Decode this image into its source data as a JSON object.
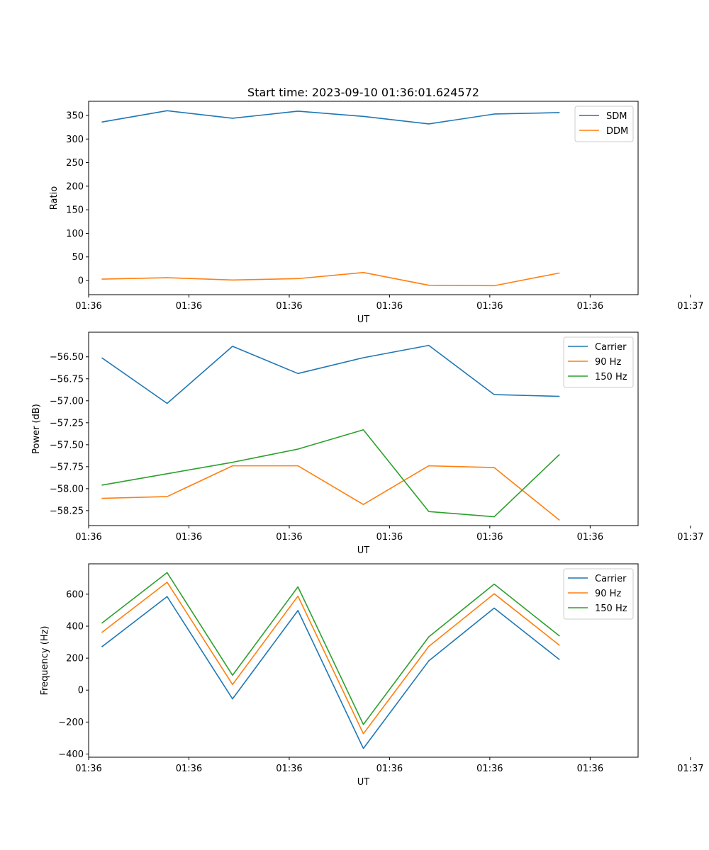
{
  "chart_data": [
    {
      "type": "line",
      "title": "Start time: 2023-09-10 01:36:01.624572",
      "xlabel": "UT",
      "ylabel": "Ratio",
      "x": [
        1,
        2,
        3,
        4,
        5,
        6,
        7,
        8
      ],
      "xlim": [
        0.8,
        9.2
      ],
      "xtick_values": [
        0.8,
        2.333,
        3.867,
        5.4,
        6.933,
        8.467,
        10.0
      ],
      "xtick_labels": [
        "01:36",
        "01:36",
        "01:36",
        "01:36",
        "01:36",
        "01:36",
        "01:37"
      ],
      "ylim": [
        -30,
        380
      ],
      "yticks": [
        0,
        50,
        100,
        150,
        200,
        250,
        300,
        350
      ],
      "legend_position": "top-right",
      "series": [
        {
          "name": "SDM",
          "color": "#1f77b4",
          "values": [
            336,
            360,
            344,
            359,
            348,
            332,
            353,
            356
          ]
        },
        {
          "name": "DDM",
          "color": "#ff7f0e",
          "values": [
            3,
            6,
            1,
            4,
            17,
            -10,
            -11,
            16
          ]
        }
      ]
    },
    {
      "type": "line",
      "xlabel": "UT",
      "ylabel": "Power (dB)",
      "x": [
        1,
        2,
        3,
        4,
        5,
        6,
        7,
        8
      ],
      "xlim": [
        0.8,
        9.2
      ],
      "xtick_values": [
        0.8,
        2.333,
        3.867,
        5.4,
        6.933,
        8.467,
        10.0
      ],
      "xtick_labels": [
        "01:36",
        "01:36",
        "01:36",
        "01:36",
        "01:36",
        "01:36",
        "01:37"
      ],
      "ylim": [
        -58.42,
        -56.22
      ],
      "yticks": [
        -58.25,
        -58.0,
        -57.75,
        -57.5,
        -57.25,
        -57.0,
        -56.75,
        -56.5
      ],
      "ytick_labels": [
        "−58.25",
        "−58.00",
        "−57.75",
        "−57.50",
        "−57.25",
        "−57.00",
        "−56.75",
        "−56.50"
      ],
      "legend_position": "top-right",
      "series": [
        {
          "name": "Carrier",
          "color": "#1f77b4",
          "values": [
            -56.51,
            -57.03,
            -56.38,
            -56.69,
            -56.51,
            -56.37,
            -56.93,
            -56.95
          ]
        },
        {
          "name": "90 Hz",
          "color": "#ff7f0e",
          "values": [
            -58.11,
            -58.09,
            -57.74,
            -57.74,
            -58.18,
            -57.74,
            -57.76,
            -58.36
          ]
        },
        {
          "name": "150 Hz",
          "color": "#2ca02c",
          "values": [
            -57.96,
            -57.83,
            -57.7,
            -57.55,
            -57.33,
            -58.26,
            -58.32,
            -57.61
          ]
        }
      ]
    },
    {
      "type": "line",
      "xlabel": "UT",
      "ylabel": "Frequency (Hz)",
      "x": [
        1,
        2,
        3,
        4,
        5,
        6,
        7,
        8
      ],
      "xlim": [
        0.8,
        9.2
      ],
      "xtick_values": [
        0.8,
        2.333,
        3.867,
        5.4,
        6.933,
        8.467,
        10.0
      ],
      "xtick_labels": [
        "01:36",
        "01:36",
        "01:36",
        "01:36",
        "01:36",
        "01:36",
        "01:37"
      ],
      "ylim": [
        -420,
        790
      ],
      "yticks": [
        -400,
        -200,
        0,
        200,
        400,
        600
      ],
      "ytick_labels": [
        "−400",
        "−200",
        "0",
        "200",
        "400",
        "600"
      ],
      "legend_position": "top-right",
      "series": [
        {
          "name": "Carrier",
          "color": "#1f77b4",
          "values": [
            270,
            585,
            -55,
            498,
            -365,
            183,
            513,
            190
          ]
        },
        {
          "name": "90 Hz",
          "color": "#ff7f0e",
          "values": [
            360,
            675,
            35,
            588,
            -273,
            273,
            603,
            280
          ]
        },
        {
          "name": "150 Hz",
          "color": "#2ca02c",
          "values": [
            418,
            735,
            93,
            646,
            -215,
            333,
            663,
            338
          ]
        }
      ]
    }
  ]
}
